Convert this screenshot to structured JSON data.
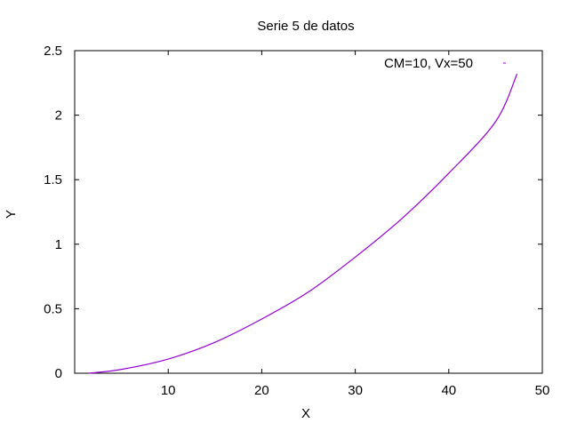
{
  "chart_data": {
    "type": "line",
    "title": "Serie 5 de datos",
    "xlabel": "X",
    "ylabel": "Y",
    "xlim": [
      0,
      50
    ],
    "ylim": [
      0,
      2.5
    ],
    "x_ticks": [
      10,
      20,
      30,
      40,
      50
    ],
    "y_ticks": [
      "0",
      "0.5",
      "1",
      "1.5",
      "2",
      "2.5"
    ],
    "grid": false,
    "legend_position": "top-right",
    "series": [
      {
        "name": "CM=10, Vx=50",
        "color": "#9400d3",
        "x": [
          1.5,
          5,
          10,
          15,
          20,
          25,
          30,
          35,
          40,
          45,
          47.3
        ],
        "y": [
          0.0,
          0.03,
          0.11,
          0.24,
          0.42,
          0.63,
          0.9,
          1.2,
          1.55,
          1.95,
          2.32
        ]
      }
    ]
  }
}
